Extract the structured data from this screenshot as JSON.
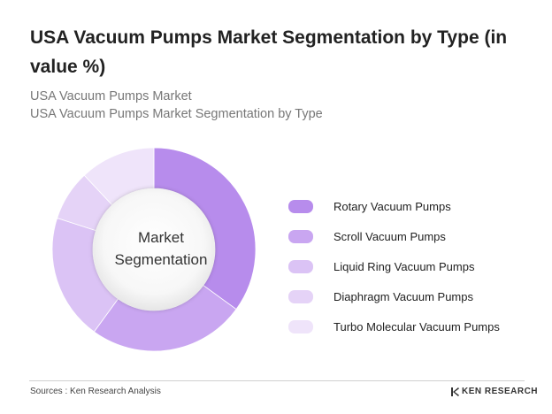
{
  "header": {
    "title": "USA Vacuum Pumps Market Segmentation by Type (in value %)",
    "subtitle_line1": "USA Vacuum Pumps Market",
    "subtitle_line2": "USA Vacuum Pumps Market Segmentation by Type"
  },
  "chart_data": {
    "type": "pie",
    "variant": "donut",
    "center_label_line1": "Market",
    "center_label_line2": "Segmentation",
    "categories": [
      "Rotary Vacuum Pumps",
      "Scroll Vacuum Pumps",
      "Liquid Ring Vacuum Pumps",
      "Diaphragm Vacuum Pumps",
      "Turbo Molecular Vacuum Pumps"
    ],
    "values": [
      35,
      25,
      20,
      8,
      12
    ],
    "colors": [
      "#b78cec",
      "#c9a6f1",
      "#dbc3f5",
      "#e5d3f7",
      "#efe4fa"
    ],
    "legend_position": "right"
  },
  "footer": {
    "source": "Sources : Ken Research Analysis",
    "brand": "KEN RESEARCH"
  }
}
